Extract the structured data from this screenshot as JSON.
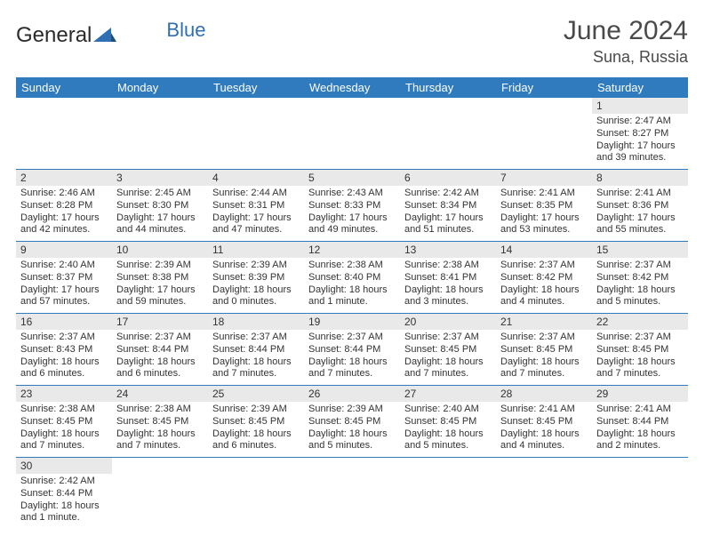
{
  "logo": {
    "part1": "General",
    "part2": "Blue"
  },
  "header": {
    "month": "June 2024",
    "location": "Suna, Russia"
  },
  "colors": {
    "header_bg": "#2f7bbd",
    "header_text": "#ffffff",
    "daynum_bg": "#e9e9e9",
    "empty_bg": "#f0f0f0",
    "border": "#2f7bbd",
    "text": "#333333",
    "logo_blue": "#2f6fb3"
  },
  "daysOfWeek": [
    "Sunday",
    "Monday",
    "Tuesday",
    "Wednesday",
    "Thursday",
    "Friday",
    "Saturday"
  ],
  "weeks": [
    [
      null,
      null,
      null,
      null,
      null,
      null,
      {
        "n": "1",
        "sr": "Sunrise: 2:47 AM",
        "ss": "Sunset: 8:27 PM",
        "d1": "Daylight: 17 hours",
        "d2": "and 39 minutes."
      }
    ],
    [
      {
        "n": "2",
        "sr": "Sunrise: 2:46 AM",
        "ss": "Sunset: 8:28 PM",
        "d1": "Daylight: 17 hours",
        "d2": "and 42 minutes."
      },
      {
        "n": "3",
        "sr": "Sunrise: 2:45 AM",
        "ss": "Sunset: 8:30 PM",
        "d1": "Daylight: 17 hours",
        "d2": "and 44 minutes."
      },
      {
        "n": "4",
        "sr": "Sunrise: 2:44 AM",
        "ss": "Sunset: 8:31 PM",
        "d1": "Daylight: 17 hours",
        "d2": "and 47 minutes."
      },
      {
        "n": "5",
        "sr": "Sunrise: 2:43 AM",
        "ss": "Sunset: 8:33 PM",
        "d1": "Daylight: 17 hours",
        "d2": "and 49 minutes."
      },
      {
        "n": "6",
        "sr": "Sunrise: 2:42 AM",
        "ss": "Sunset: 8:34 PM",
        "d1": "Daylight: 17 hours",
        "d2": "and 51 minutes."
      },
      {
        "n": "7",
        "sr": "Sunrise: 2:41 AM",
        "ss": "Sunset: 8:35 PM",
        "d1": "Daylight: 17 hours",
        "d2": "and 53 minutes."
      },
      {
        "n": "8",
        "sr": "Sunrise: 2:41 AM",
        "ss": "Sunset: 8:36 PM",
        "d1": "Daylight: 17 hours",
        "d2": "and 55 minutes."
      }
    ],
    [
      {
        "n": "9",
        "sr": "Sunrise: 2:40 AM",
        "ss": "Sunset: 8:37 PM",
        "d1": "Daylight: 17 hours",
        "d2": "and 57 minutes."
      },
      {
        "n": "10",
        "sr": "Sunrise: 2:39 AM",
        "ss": "Sunset: 8:38 PM",
        "d1": "Daylight: 17 hours",
        "d2": "and 59 minutes."
      },
      {
        "n": "11",
        "sr": "Sunrise: 2:39 AM",
        "ss": "Sunset: 8:39 PM",
        "d1": "Daylight: 18 hours",
        "d2": "and 0 minutes."
      },
      {
        "n": "12",
        "sr": "Sunrise: 2:38 AM",
        "ss": "Sunset: 8:40 PM",
        "d1": "Daylight: 18 hours",
        "d2": "and 1 minute."
      },
      {
        "n": "13",
        "sr": "Sunrise: 2:38 AM",
        "ss": "Sunset: 8:41 PM",
        "d1": "Daylight: 18 hours",
        "d2": "and 3 minutes."
      },
      {
        "n": "14",
        "sr": "Sunrise: 2:37 AM",
        "ss": "Sunset: 8:42 PM",
        "d1": "Daylight: 18 hours",
        "d2": "and 4 minutes."
      },
      {
        "n": "15",
        "sr": "Sunrise: 2:37 AM",
        "ss": "Sunset: 8:42 PM",
        "d1": "Daylight: 18 hours",
        "d2": "and 5 minutes."
      }
    ],
    [
      {
        "n": "16",
        "sr": "Sunrise: 2:37 AM",
        "ss": "Sunset: 8:43 PM",
        "d1": "Daylight: 18 hours",
        "d2": "and 6 minutes."
      },
      {
        "n": "17",
        "sr": "Sunrise: 2:37 AM",
        "ss": "Sunset: 8:44 PM",
        "d1": "Daylight: 18 hours",
        "d2": "and 6 minutes."
      },
      {
        "n": "18",
        "sr": "Sunrise: 2:37 AM",
        "ss": "Sunset: 8:44 PM",
        "d1": "Daylight: 18 hours",
        "d2": "and 7 minutes."
      },
      {
        "n": "19",
        "sr": "Sunrise: 2:37 AM",
        "ss": "Sunset: 8:44 PM",
        "d1": "Daylight: 18 hours",
        "d2": "and 7 minutes."
      },
      {
        "n": "20",
        "sr": "Sunrise: 2:37 AM",
        "ss": "Sunset: 8:45 PM",
        "d1": "Daylight: 18 hours",
        "d2": "and 7 minutes."
      },
      {
        "n": "21",
        "sr": "Sunrise: 2:37 AM",
        "ss": "Sunset: 8:45 PM",
        "d1": "Daylight: 18 hours",
        "d2": "and 7 minutes."
      },
      {
        "n": "22",
        "sr": "Sunrise: 2:37 AM",
        "ss": "Sunset: 8:45 PM",
        "d1": "Daylight: 18 hours",
        "d2": "and 7 minutes."
      }
    ],
    [
      {
        "n": "23",
        "sr": "Sunrise: 2:38 AM",
        "ss": "Sunset: 8:45 PM",
        "d1": "Daylight: 18 hours",
        "d2": "and 7 minutes."
      },
      {
        "n": "24",
        "sr": "Sunrise: 2:38 AM",
        "ss": "Sunset: 8:45 PM",
        "d1": "Daylight: 18 hours",
        "d2": "and 7 minutes."
      },
      {
        "n": "25",
        "sr": "Sunrise: 2:39 AM",
        "ss": "Sunset: 8:45 PM",
        "d1": "Daylight: 18 hours",
        "d2": "and 6 minutes."
      },
      {
        "n": "26",
        "sr": "Sunrise: 2:39 AM",
        "ss": "Sunset: 8:45 PM",
        "d1": "Daylight: 18 hours",
        "d2": "and 5 minutes."
      },
      {
        "n": "27",
        "sr": "Sunrise: 2:40 AM",
        "ss": "Sunset: 8:45 PM",
        "d1": "Daylight: 18 hours",
        "d2": "and 5 minutes."
      },
      {
        "n": "28",
        "sr": "Sunrise: 2:41 AM",
        "ss": "Sunset: 8:45 PM",
        "d1": "Daylight: 18 hours",
        "d2": "and 4 minutes."
      },
      {
        "n": "29",
        "sr": "Sunrise: 2:41 AM",
        "ss": "Sunset: 8:44 PM",
        "d1": "Daylight: 18 hours",
        "d2": "and 2 minutes."
      }
    ],
    [
      {
        "n": "30",
        "sr": "Sunrise: 2:42 AM",
        "ss": "Sunset: 8:44 PM",
        "d1": "Daylight: 18 hours",
        "d2": "and 1 minute."
      },
      null,
      null,
      null,
      null,
      null,
      null
    ]
  ]
}
